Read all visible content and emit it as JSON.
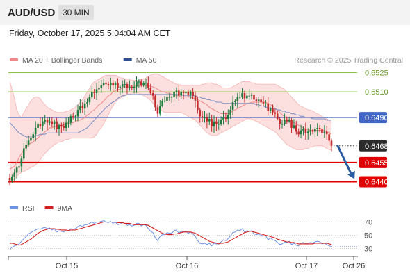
{
  "header": {
    "symbol": "AUD/USD",
    "interval": "30 MIN",
    "datetime": "Friday, October 17, 2025 5:04:04 AM CET",
    "credit": "Research © 2025 Trading Central"
  },
  "colors": {
    "bollinger": "#f08a8a",
    "bollinger_fill": "#fbd5d5",
    "ma50": "#2f4f8f",
    "up": "#1f7a3d",
    "down": "#c42a2a",
    "resistance_line": "#8bc34a",
    "pivot_line": "#3f66c8",
    "support_line": "#e00000",
    "arrow": "#2a5aa0",
    "rsi": "#6b8ee6",
    "rsi_ma": "#d42020"
  },
  "chart_data": [
    {
      "type": "candlestick",
      "legend": [
        {
          "name": "MA 20 + Bollinger Bands",
          "color": "#f08a8a"
        },
        {
          "name": "MA 50",
          "color": "#2f4f8f"
        }
      ],
      "ylim": [
        0.64365,
        0.65285
      ],
      "x_ticks": [
        "Oct 15",
        "Oct 16",
        "Oct 17",
        "Oct 26"
      ],
      "levels": [
        {
          "value": 0.6525,
          "label": "0.6525",
          "kind": "resistance"
        },
        {
          "value": 0.651,
          "label": "0.6510",
          "kind": "resistance"
        },
        {
          "value": 0.649,
          "label": "0.6490",
          "kind": "pivot"
        },
        {
          "value": 0.6468,
          "label": "0.6468",
          "kind": "last"
        },
        {
          "value": 0.6455,
          "label": "0.6455",
          "kind": "support"
        },
        {
          "value": 0.644,
          "label": "0.6440",
          "kind": "support"
        }
      ],
      "forecast": {
        "from": 0.6468,
        "to": 0.644,
        "direction": "down"
      },
      "close": [
        0.6441,
        0.6444,
        0.6447,
        0.6451,
        0.6452,
        0.6458,
        0.6466,
        0.6469,
        0.6472,
        0.6474,
        0.6477,
        0.6482,
        0.6485,
        0.6483,
        0.6487,
        0.6488,
        0.6486,
        0.6487,
        0.6485,
        0.6487,
        0.6481,
        0.6484,
        0.6483,
        0.6482,
        0.6486,
        0.6486,
        0.6491,
        0.649,
        0.6491,
        0.6496,
        0.6499,
        0.6497,
        0.6501,
        0.6502,
        0.6506,
        0.651,
        0.6509,
        0.6512,
        0.6513,
        0.6515,
        0.6517,
        0.6516,
        0.6515,
        0.6517,
        0.6515,
        0.6517,
        0.6513,
        0.6514,
        0.6516,
        0.6516,
        0.6513,
        0.6514,
        0.6513,
        0.6514,
        0.6518,
        0.6518,
        0.6515,
        0.6517,
        0.6517,
        0.6513,
        0.6509,
        0.6507,
        0.6498,
        0.6493,
        0.6499,
        0.6503,
        0.6503,
        0.6506,
        0.6506,
        0.6506,
        0.651,
        0.6511,
        0.6507,
        0.651,
        0.6509,
        0.651,
        0.6508,
        0.651,
        0.6507,
        0.6503,
        0.6496,
        0.6491,
        0.649,
        0.649,
        0.6487,
        0.6489,
        0.6483,
        0.6487,
        0.6485,
        0.6485,
        0.6488,
        0.649,
        0.6489,
        0.6492,
        0.6496,
        0.6502,
        0.6503,
        0.6506,
        0.6506,
        0.6509,
        0.6505,
        0.6507,
        0.6507,
        0.6508,
        0.6504,
        0.6503,
        0.6504,
        0.6502,
        0.6501,
        0.6501,
        0.6495,
        0.6497,
        0.6494,
        0.6493,
        0.6489,
        0.6485,
        0.6485,
        0.6488,
        0.6487,
        0.6488,
        0.6482,
        0.6484,
        0.6479,
        0.6477,
        0.648,
        0.6481,
        0.6478,
        0.6479,
        0.648,
        0.6479,
        0.6481,
        0.6482,
        0.6481,
        0.6478,
        0.6479,
        0.6477,
        0.6472,
        0.6468
      ],
      "ma20": [
        0.645,
        0.6451,
        0.6452,
        0.6455,
        0.6459,
        0.6462,
        0.6465,
        0.6467,
        0.6469,
        0.647,
        0.6471,
        0.6473,
        0.6474,
        0.6476,
        0.6477,
        0.6479,
        0.648,
        0.6482,
        0.6482,
        0.6483,
        0.6483,
        0.6484,
        0.6484,
        0.6484,
        0.6485,
        0.6485,
        0.6486,
        0.6486,
        0.6487,
        0.6488,
        0.6488,
        0.6489,
        0.649,
        0.6492,
        0.6493,
        0.6495,
        0.6496,
        0.6498,
        0.65,
        0.6501,
        0.6503,
        0.6505,
        0.6507,
        0.6508,
        0.651,
        0.6511,
        0.6512,
        0.6512,
        0.6513,
        0.6514,
        0.6514,
        0.6514,
        0.6515,
        0.6515,
        0.6515,
        0.6515,
        0.6515,
        0.6515,
        0.6515,
        0.6515,
        0.6514,
        0.6514,
        0.6513,
        0.6512,
        0.6511,
        0.651,
        0.651,
        0.6509,
        0.6509,
        0.6508,
        0.6508,
        0.6507,
        0.6507,
        0.6506,
        0.6506,
        0.6506,
        0.6506,
        0.6506,
        0.6505,
        0.6505,
        0.6504,
        0.6503,
        0.6502,
        0.6501,
        0.65,
        0.6498,
        0.6497,
        0.6496,
        0.6495,
        0.6494,
        0.6493,
        0.6493,
        0.6493,
        0.6493,
        0.6494,
        0.6495,
        0.6496,
        0.6497,
        0.6498,
        0.6499,
        0.65,
        0.6501,
        0.6501,
        0.6502,
        0.6502,
        0.6502,
        0.6502,
        0.6502,
        0.6502,
        0.6502,
        0.6501,
        0.65,
        0.6499,
        0.6497,
        0.6496,
        0.6494,
        0.6492,
        0.6491,
        0.6489,
        0.6488,
        0.6487,
        0.6486,
        0.6485,
        0.6484,
        0.6483,
        0.6482,
        0.6481,
        0.6481,
        0.648,
        0.648,
        0.648,
        0.648,
        0.648,
        0.648,
        0.648,
        0.6479,
        0.6478,
        0.6477
      ],
      "bb_upper": [
        0.6518,
        0.6512,
        0.6505,
        0.6496,
        0.6492,
        0.649,
        0.6494,
        0.6497,
        0.65,
        0.6503,
        0.6505,
        0.6506,
        0.6506,
        0.6505,
        0.6502,
        0.65,
        0.6498,
        0.6497,
        0.6496,
        0.6495,
        0.6494,
        0.6494,
        0.6494,
        0.6494,
        0.6495,
        0.6495,
        0.6496,
        0.6497,
        0.6498,
        0.65,
        0.6502,
        0.6504,
        0.6507,
        0.651,
        0.6513,
        0.6516,
        0.6518,
        0.6519,
        0.652,
        0.6521,
        0.6522,
        0.6523,
        0.6523,
        0.6523,
        0.6523,
        0.6523,
        0.6522,
        0.6521,
        0.6521,
        0.652,
        0.652,
        0.652,
        0.6519,
        0.6519,
        0.6519,
        0.6519,
        0.652,
        0.652,
        0.6521,
        0.6522,
        0.6523,
        0.6524,
        0.6524,
        0.6524,
        0.6523,
        0.6522,
        0.6521,
        0.652,
        0.6519,
        0.6518,
        0.6517,
        0.6516,
        0.6516,
        0.6515,
        0.6515,
        0.6515,
        0.6515,
        0.6515,
        0.6515,
        0.6515,
        0.6515,
        0.6515,
        0.6516,
        0.6516,
        0.6517,
        0.6517,
        0.6517,
        0.6516,
        0.6516,
        0.6515,
        0.6514,
        0.6513,
        0.6513,
        0.6513,
        0.6513,
        0.6514,
        0.6515,
        0.6516,
        0.6517,
        0.6518,
        0.6518,
        0.6518,
        0.6518,
        0.6517,
        0.6517,
        0.6516,
        0.6516,
        0.6516,
        0.6516,
        0.6516,
        0.6516,
        0.6516,
        0.6516,
        0.6516,
        0.6515,
        0.6514,
        0.6513,
        0.6512,
        0.651,
        0.6508,
        0.6506,
        0.6504,
        0.6502,
        0.65,
        0.6499,
        0.6498,
        0.6497,
        0.6496,
        0.6496,
        0.6495,
        0.6494,
        0.6493,
        0.6492,
        0.6491,
        0.649,
        0.6489,
        0.6488,
        0.6486
      ],
      "bb_lower": [
        0.644,
        0.6441,
        0.6442,
        0.6444,
        0.6446,
        0.6447,
        0.6448,
        0.6449,
        0.645,
        0.6451,
        0.6452,
        0.6453,
        0.6455,
        0.6457,
        0.646,
        0.6462,
        0.6464,
        0.6466,
        0.6467,
        0.6469,
        0.647,
        0.6471,
        0.6471,
        0.6472,
        0.6473,
        0.6473,
        0.6474,
        0.6474,
        0.6474,
        0.6474,
        0.6474,
        0.6474,
        0.6474,
        0.6474,
        0.6474,
        0.6474,
        0.6475,
        0.6477,
        0.648,
        0.6482,
        0.6485,
        0.6489,
        0.6492,
        0.6496,
        0.6499,
        0.6502,
        0.6504,
        0.6505,
        0.6506,
        0.6507,
        0.6508,
        0.6508,
        0.6509,
        0.6509,
        0.6509,
        0.6509,
        0.6508,
        0.6507,
        0.6506,
        0.6505,
        0.6503,
        0.6501,
        0.6499,
        0.6497,
        0.6496,
        0.6495,
        0.6494,
        0.6494,
        0.6494,
        0.6494,
        0.6494,
        0.6494,
        0.6494,
        0.6494,
        0.6493,
        0.6492,
        0.6491,
        0.649,
        0.6489,
        0.6488,
        0.6486,
        0.6484,
        0.6482,
        0.648,
        0.6478,
        0.6477,
        0.6476,
        0.6476,
        0.6476,
        0.6477,
        0.6478,
        0.6479,
        0.648,
        0.6481,
        0.6482,
        0.6483,
        0.6484,
        0.6485,
        0.6486,
        0.6487,
        0.6488,
        0.6489,
        0.6489,
        0.6489,
        0.6488,
        0.6487,
        0.6486,
        0.6485,
        0.6484,
        0.6483,
        0.6482,
        0.6481,
        0.648,
        0.6479,
        0.6477,
        0.6475,
        0.6473,
        0.6471,
        0.6469,
        0.6468,
        0.6467,
        0.6466,
        0.6465,
        0.6465,
        0.6465,
        0.6465,
        0.6466,
        0.6466,
        0.6467,
        0.6467,
        0.6468,
        0.6468,
        0.6468,
        0.6468,
        0.6467,
        0.6466,
        0.6465,
        0.6465
      ],
      "ma50": [
        0.6486,
        0.6484,
        0.6482,
        0.648,
        0.6478,
        0.6477,
        0.6476,
        0.6475,
        0.6475,
        0.6475,
        0.6475,
        0.6476,
        0.6476,
        0.6477,
        0.6477,
        0.6477,
        0.6478,
        0.6478,
        0.6478,
        0.6478,
        0.6478,
        0.6478,
        0.6478,
        0.6478,
        0.6478,
        0.6478,
        0.6478,
        0.6478,
        0.6478,
        0.6478,
        0.6479,
        0.648,
        0.6481,
        0.6482,
        0.6484,
        0.6486,
        0.6488,
        0.649,
        0.6492,
        0.6494,
        0.6496,
        0.6498,
        0.6499,
        0.6501,
        0.6502,
        0.6503,
        0.6505,
        0.6506,
        0.6507,
        0.6507,
        0.6508,
        0.6508,
        0.6508,
        0.6508,
        0.6508,
        0.6508,
        0.6508,
        0.6508,
        0.6508,
        0.6508,
        0.6508,
        0.6508,
        0.6508,
        0.6508,
        0.6508,
        0.6508,
        0.6508,
        0.6508,
        0.6508,
        0.6508,
        0.6508,
        0.6508,
        0.6508,
        0.6508,
        0.6507,
        0.6507,
        0.6507,
        0.6507,
        0.6507,
        0.6507,
        0.6506,
        0.6506,
        0.6505,
        0.6505,
        0.6504,
        0.6504,
        0.6503,
        0.6503,
        0.6502,
        0.6502,
        0.6502,
        0.6501,
        0.6501,
        0.6501,
        0.6501,
        0.6501,
        0.6501,
        0.6501,
        0.6501,
        0.6501,
        0.6501,
        0.6501,
        0.6501,
        0.6501,
        0.6501,
        0.65,
        0.65,
        0.6499,
        0.6499,
        0.6498,
        0.6498,
        0.6497,
        0.6497,
        0.6497,
        0.6496,
        0.6496,
        0.6495,
        0.6495,
        0.6494,
        0.6494,
        0.6493,
        0.6493,
        0.6492,
        0.6492,
        0.6491,
        0.6491,
        0.649,
        0.649,
        0.649,
        0.6489,
        0.6489,
        0.6489,
        0.6489,
        0.6489,
        0.6489,
        0.6488,
        0.6488,
        0.6488
      ]
    },
    {
      "type": "line",
      "legend": [
        {
          "name": "RSI",
          "color": "#6b8ee6"
        },
        {
          "name": "9MA",
          "color": "#d42020"
        }
      ],
      "ylim": [
        20,
        80
      ],
      "y_ticks": [
        70,
        50,
        30
      ],
      "rsi": [
        28,
        32,
        34,
        35,
        37,
        41,
        45,
        48,
        52,
        54,
        56,
        58,
        60,
        59,
        61,
        62,
        60,
        61,
        58,
        60,
        55,
        57,
        56,
        55,
        58,
        57,
        60,
        59,
        60,
        63,
        65,
        63,
        66,
        66,
        68,
        70,
        68,
        70,
        70,
        71,
        72,
        70,
        69,
        71,
        68,
        70,
        66,
        67,
        69,
        68,
        65,
        66,
        64,
        65,
        68,
        68,
        64,
        66,
        65,
        60,
        56,
        54,
        46,
        42,
        48,
        51,
        51,
        54,
        53,
        53,
        57,
        58,
        53,
        56,
        55,
        56,
        53,
        55,
        52,
        48,
        42,
        38,
        37,
        38,
        36,
        38,
        34,
        38,
        37,
        37,
        40,
        43,
        42,
        45,
        49,
        54,
        55,
        58,
        57,
        60,
        55,
        57,
        56,
        57,
        52,
        51,
        52,
        50,
        49,
        49,
        43,
        46,
        43,
        42,
        39,
        36,
        37,
        40,
        39,
        41,
        36,
        38,
        35,
        34,
        38,
        39,
        37,
        38,
        39,
        38,
        40,
        41,
        40,
        37,
        38,
        36,
        34,
        33
      ],
      "ma9": [
        38,
        38,
        37,
        36,
        35,
        36,
        38,
        40,
        42,
        44,
        47,
        50,
        53,
        55,
        57,
        58,
        59,
        60,
        60,
        60,
        59,
        59,
        58,
        58,
        58,
        57,
        58,
        58,
        58,
        59,
        60,
        61,
        62,
        63,
        64,
        65,
        66,
        67,
        68,
        69,
        70,
        70,
        70,
        70,
        70,
        70,
        69,
        69,
        69,
        68,
        68,
        68,
        67,
        66,
        66,
        66,
        66,
        66,
        66,
        65,
        63,
        61,
        59,
        57,
        55,
        53,
        52,
        51,
        51,
        51,
        52,
        52,
        53,
        54,
        55,
        55,
        55,
        55,
        54,
        53,
        51,
        49,
        47,
        45,
        43,
        41,
        40,
        39,
        38,
        37,
        38,
        38,
        39,
        40,
        42,
        44,
        46,
        48,
        50,
        52,
        54,
        55,
        56,
        56,
        55,
        54,
        53,
        52,
        51,
        50,
        49,
        48,
        47,
        46,
        44,
        43,
        42,
        41,
        40,
        40,
        39,
        39,
        38,
        37,
        37,
        37,
        37,
        37,
        37,
        37,
        38,
        38,
        38,
        38,
        38,
        38,
        37,
        36
      ]
    }
  ]
}
